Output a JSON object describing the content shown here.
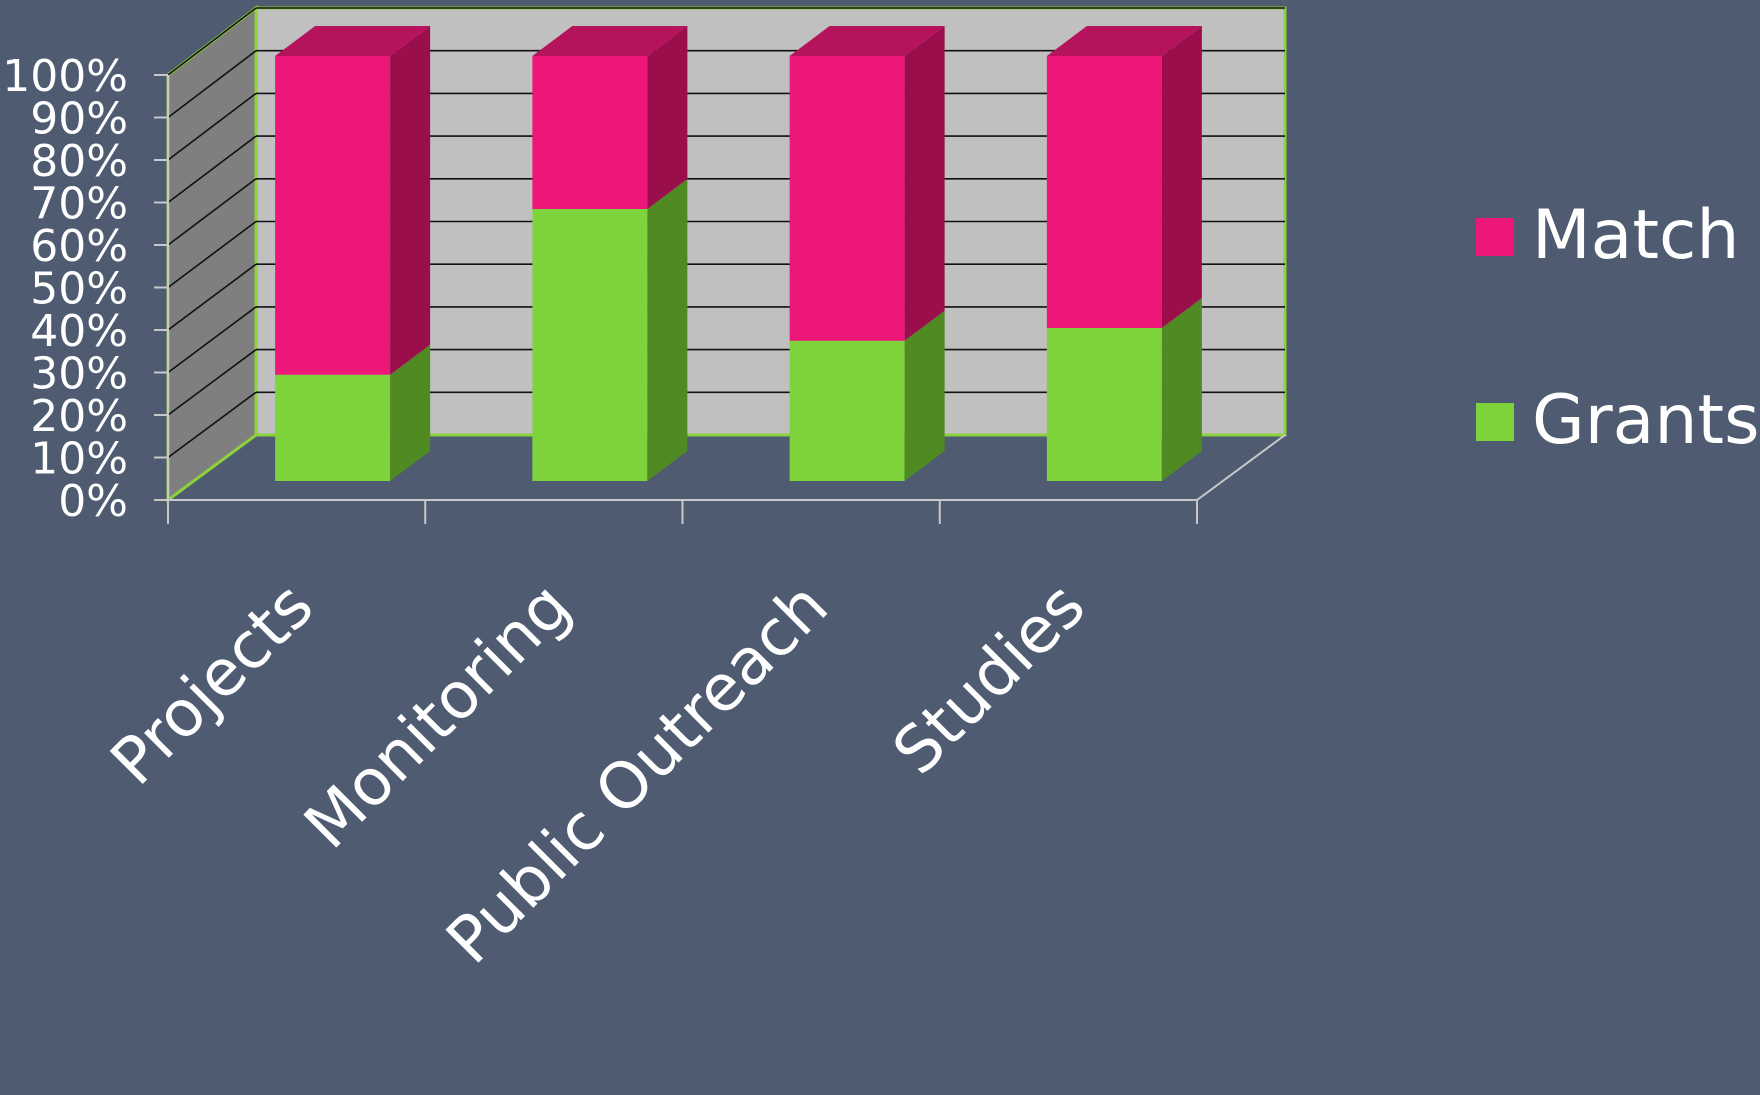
{
  "chart_data": {
    "type": "bar",
    "subtype": "100% stacked column, 3-D",
    "categories": [
      "Projects",
      "Monitoring",
      "Public Outreach",
      "Studies"
    ],
    "series": [
      {
        "name": "Grants",
        "values": [
          25,
          64,
          33,
          36
        ],
        "color": "#7ed23c"
      },
      {
        "name": "Match",
        "values": [
          75,
          36,
          67,
          64
        ],
        "color": "#ed1679"
      }
    ],
    "yaxis": {
      "min": 0,
      "max": 100,
      "step": 10,
      "tick_labels": [
        "0%",
        "10%",
        "20%",
        "30%",
        "40%",
        "50%",
        "60%",
        "70%",
        "80%",
        "90%",
        "100%"
      ]
    },
    "legend": {
      "position": "right",
      "items": [
        {
          "label": "Match",
          "color": "#ed1679"
        },
        {
          "label": "Grants",
          "color": "#7ed23c"
        }
      ]
    },
    "grid": true,
    "colors": {
      "background": "#4e5b70",
      "back_wall": "#c0c0c0",
      "side_wall": "#7f7f7f",
      "wall_border": "#8cd23c",
      "grid_line": "#111111",
      "text": "#ffffff",
      "match_front": "#ed1679",
      "match_side": "#9a0e4c",
      "match_top": "#b5135b",
      "grants_front": "#7ed23c",
      "grants_side": "#4f8a22",
      "axis": "#c8c8c8"
    }
  }
}
